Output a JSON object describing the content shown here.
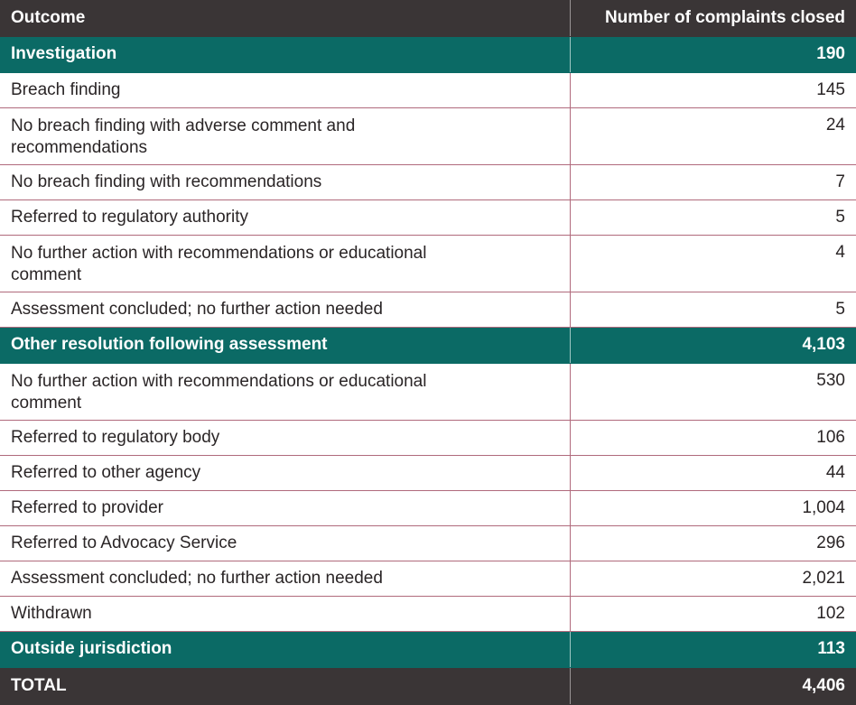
{
  "colors": {
    "header_bg": "#3a3536",
    "section_bg": "#0b6a65",
    "border": "#b06a7c"
  },
  "header": {
    "outcome": "Outcome",
    "count": "Number of complaints closed"
  },
  "rows": [
    {
      "type": "section",
      "label": "Investigation",
      "value": "190"
    },
    {
      "type": "item",
      "label": "Breach finding",
      "value": "145"
    },
    {
      "type": "item",
      "label": "No breach finding with adverse comment and\nrecommendations",
      "value": "24"
    },
    {
      "type": "item",
      "label": "No breach finding with recommendations",
      "value": "7"
    },
    {
      "type": "item",
      "label": "Referred to regulatory authority",
      "value": "5"
    },
    {
      "type": "item",
      "label": "No further action with recommendations or educational\ncomment",
      "value": "4"
    },
    {
      "type": "item",
      "label": "Assessment concluded; no further action needed",
      "value": "5"
    },
    {
      "type": "section",
      "label": "Other resolution following assessment",
      "value": "4,103"
    },
    {
      "type": "item",
      "label": "No further action with recommendations or educational\ncomment",
      "value": "530"
    },
    {
      "type": "item",
      "label": "Referred to regulatory body",
      "value": "106"
    },
    {
      "type": "item",
      "label": "Referred to other agency",
      "value": "44"
    },
    {
      "type": "item",
      "label": "Referred to provider",
      "value": "1,004"
    },
    {
      "type": "item",
      "label": "Referred to Advocacy Service",
      "value": "296"
    },
    {
      "type": "item",
      "label": "Assessment concluded; no further action needed",
      "value": "2,021"
    },
    {
      "type": "item",
      "label": "Withdrawn",
      "value": "102"
    },
    {
      "type": "section",
      "label": "Outside jurisdiction",
      "value": "113"
    }
  ],
  "total": {
    "label": "TOTAL",
    "value": "4,406"
  }
}
